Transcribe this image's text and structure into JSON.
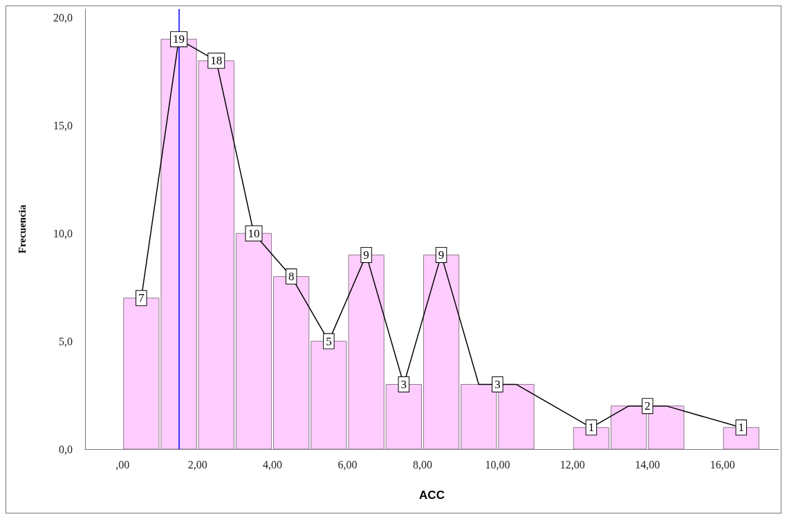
{
  "chart_data": {
    "type": "histogram",
    "xlabel": "ACC",
    "ylabel": "Frecuencia",
    "bins": [
      0,
      1,
      2,
      3,
      4,
      5,
      6,
      7,
      8,
      9,
      10,
      11,
      12,
      13,
      14,
      15,
      16,
      17
    ],
    "values": [
      7,
      19,
      18,
      10,
      8,
      5,
      9,
      3,
      9,
      3,
      3,
      0,
      1,
      2,
      2,
      0,
      1
    ],
    "color": "#ffccff",
    "series": [
      {
        "type": "line",
        "color": "#000000",
        "x": [
          0.5,
          1.5,
          2.5,
          3.5,
          4.5,
          5.5,
          6.5,
          7.5,
          8.5,
          9.5,
          10.5,
          12.5,
          13.5,
          14.5,
          16.5
        ],
        "values": [
          7,
          19,
          18,
          10,
          8,
          5,
          9,
          3,
          9,
          3,
          3,
          1,
          2,
          2,
          1
        ]
      }
    ],
    "annotations": [
      {
        "text": "7",
        "x": 0.5,
        "y": 7
      },
      {
        "text": "19",
        "x": 1.5,
        "y": 19
      },
      {
        "text": "18",
        "x": 2.5,
        "y": 18
      },
      {
        "text": "10",
        "x": 3.5,
        "y": 10
      },
      {
        "text": "8",
        "x": 4.5,
        "y": 8
      },
      {
        "text": "5",
        "x": 5.5,
        "y": 5
      },
      {
        "text": "9",
        "x": 6.5,
        "y": 9
      },
      {
        "text": "3",
        "x": 7.5,
        "y": 3
      },
      {
        "text": "9",
        "x": 8.5,
        "y": 9
      },
      {
        "text": "3",
        "x": 10,
        "y": 3
      },
      {
        "text": "1",
        "x": 12.5,
        "y": 1
      },
      {
        "text": "2",
        "x": 14,
        "y": 2
      },
      {
        "text": "1",
        "x": 16.5,
        "y": 1
      }
    ],
    "ref_lines": [
      {
        "axis": "x",
        "value": 1.5,
        "color": "#0000ff"
      }
    ],
    "xlim": [
      -1,
      17.5
    ],
    "xticks": [
      {
        "value": 0,
        "label": ",00"
      },
      {
        "value": 2,
        "label": "2,00"
      },
      {
        "value": 4,
        "label": "4,00"
      },
      {
        "value": 6,
        "label": "6,00"
      },
      {
        "value": 8,
        "label": "8,00"
      },
      {
        "value": 10,
        "label": "10,00"
      },
      {
        "value": 12,
        "label": "12,00"
      },
      {
        "value": 14,
        "label": "14,00"
      },
      {
        "value": 16,
        "label": "16,00"
      }
    ],
    "ylim": [
      0,
      20.4
    ],
    "yticks": [
      {
        "value": 0,
        "label": "0,0"
      },
      {
        "value": 5,
        "label": "5,0"
      },
      {
        "value": 10,
        "label": "10,0"
      },
      {
        "value": 15,
        "label": "15,0"
      },
      {
        "value": 20,
        "label": "20,0"
      }
    ],
    "grid": false
  }
}
